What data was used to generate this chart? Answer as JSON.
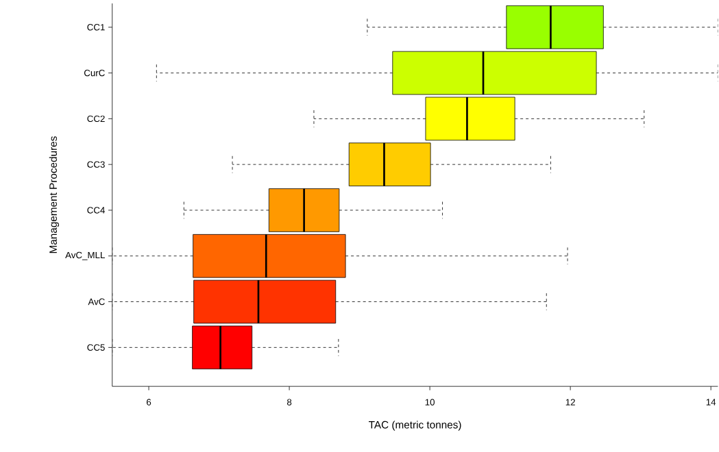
{
  "chart_data": {
    "type": "box",
    "orientation": "horizontal",
    "xlabel": "TAC (metric tonnes)",
    "ylabel": "Management Procedures",
    "categories": [
      "CC1",
      "CurC",
      "CC2",
      "CC3",
      "CC4",
      "AvC_MLL",
      "AvC",
      "CC5"
    ],
    "colors": [
      "#99ff00",
      "#ccff00",
      "#ffff00",
      "#ffcc00",
      "#ff9900",
      "#ff6600",
      "#ff3300",
      "#ff0000"
    ],
    "boxes": [
      {
        "low": 9.11,
        "q1": 11.09,
        "median": 11.72,
        "q3": 12.47,
        "high": 14.1
      },
      {
        "low": 6.11,
        "q1": 9.47,
        "median": 10.76,
        "q3": 12.37,
        "high": 14.1
      },
      {
        "low": 8.35,
        "q1": 9.94,
        "median": 10.53,
        "q3": 11.21,
        "high": 13.05
      },
      {
        "low": 7.19,
        "q1": 8.85,
        "median": 9.35,
        "q3": 10.01,
        "high": 11.72
      },
      {
        "low": 6.5,
        "q1": 7.71,
        "median": 8.21,
        "q3": 8.71,
        "high": 10.18
      },
      {
        "low": 5.48,
        "q1": 6.63,
        "median": 7.67,
        "q3": 8.8,
        "high": 11.96
      },
      {
        "low": 5.48,
        "q1": 6.64,
        "median": 7.56,
        "q3": 8.66,
        "high": 11.66
      },
      {
        "low": 5.48,
        "q1": 6.62,
        "median": 7.02,
        "q3": 7.47,
        "high": 8.7
      }
    ],
    "xlim": [
      5.48,
      14.1
    ],
    "xticks": [
      6,
      8,
      10,
      12,
      14
    ],
    "grid": false
  }
}
